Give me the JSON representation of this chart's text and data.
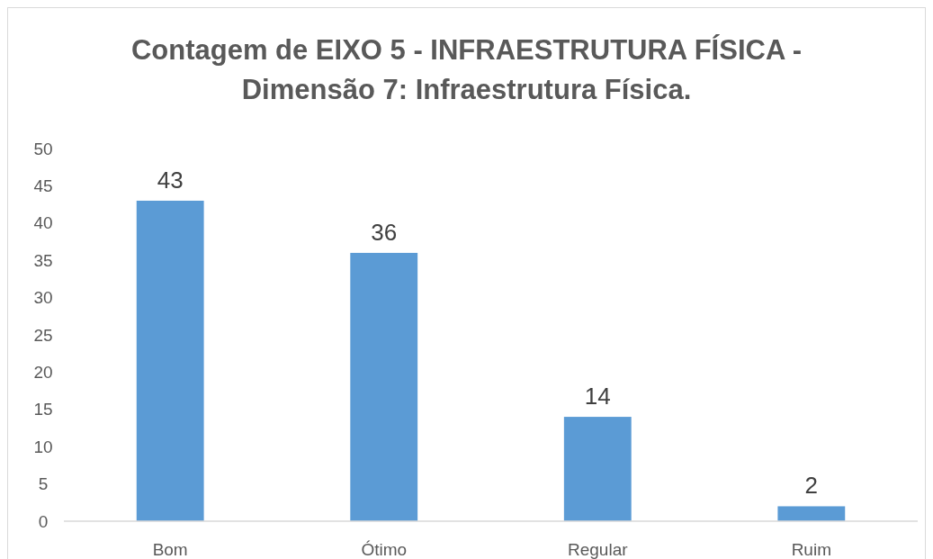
{
  "chart_data": {
    "type": "bar",
    "title": "Contagem de EIXO 5 - INFRAESTRUTURA FÍSICA - Dimensão 7: Infraestrutura Física.",
    "categories": [
      "Bom",
      "Ótimo",
      "Regular",
      "Ruim"
    ],
    "values": [
      43,
      36,
      14,
      2
    ],
    "color": "#5b9bd5",
    "ylim": [
      0,
      50
    ],
    "yticks": [
      0,
      5,
      10,
      15,
      20,
      25,
      30,
      35,
      40,
      45,
      50
    ],
    "grid": false,
    "data_labels": true
  }
}
